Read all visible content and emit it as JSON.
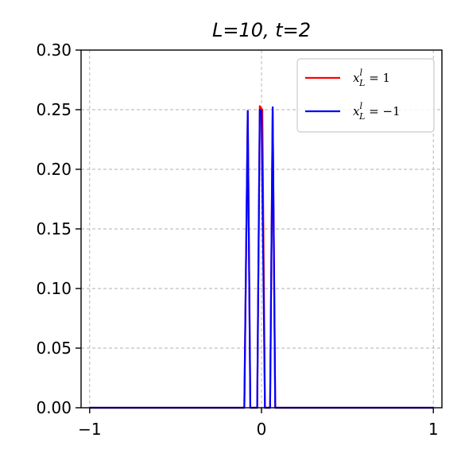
{
  "chart_data": {
    "type": "line",
    "title": "L=10, t=2",
    "xlabel": "",
    "ylabel": "",
    "xlim": [
      -1.05,
      1.05
    ],
    "ylim": [
      0,
      0.3
    ],
    "xticks": [
      -1,
      0,
      1
    ],
    "xtick_labels": [
      "−1",
      "0",
      "1"
    ],
    "yticks": [
      0.0,
      0.05,
      0.1,
      0.15,
      0.2,
      0.25,
      0.3
    ],
    "ytick_labels": [
      "0.00",
      "0.05",
      "0.10",
      "0.15",
      "0.20",
      "0.25",
      "0.30"
    ],
    "grid": true,
    "legend_position": "top-right",
    "series": [
      {
        "name": "x_L^I = 1",
        "legend_label": "x_L^I = 1",
        "color": "#ff0000",
        "x": [
          -1.0,
          -0.11,
          -0.1,
          -0.08,
          -0.065,
          -0.04,
          -0.025,
          -0.01,
          0.005,
          0.02,
          0.035,
          0.05,
          0.065,
          0.08,
          1.0
        ],
        "y": [
          0.0,
          0.0,
          0.0,
          0.249,
          0.0,
          0.0,
          0.0,
          0.253,
          0.25,
          0.0,
          0.0,
          0.0,
          0.252,
          0.0,
          0.0
        ]
      },
      {
        "name": "x_L^I = −1",
        "legend_label": "x_L^I = −1",
        "color": "#0000ff",
        "x": [
          -1.0,
          -0.105,
          -0.1,
          -0.08,
          -0.065,
          -0.04,
          -0.025,
          -0.01,
          0.0,
          0.02,
          0.035,
          0.05,
          0.065,
          0.08,
          1.0
        ],
        "y": [
          0.0,
          0.0,
          0.0,
          0.249,
          0.0,
          0.0,
          0.0,
          0.25,
          0.249,
          0.0,
          0.0,
          0.0,
          0.252,
          0.0,
          0.0
        ]
      }
    ]
  }
}
